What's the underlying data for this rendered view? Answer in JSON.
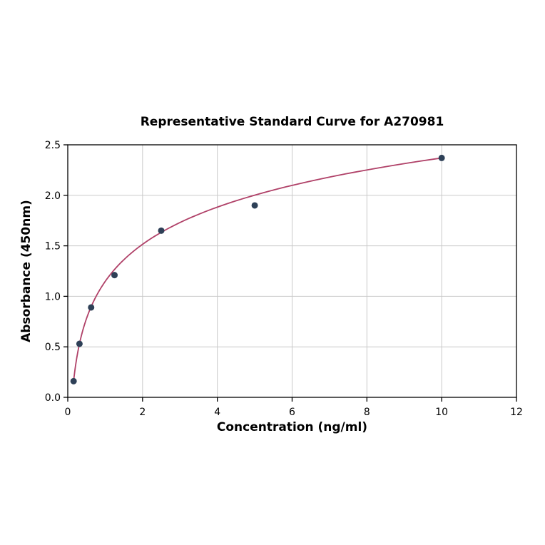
{
  "chart_data": {
    "type": "scatter",
    "title": "Representative Standard Curve for A270981",
    "xlabel": "Concentration (ng/ml)",
    "ylabel": "Absorbance (450nm)",
    "xlim": [
      0,
      12
    ],
    "ylim": [
      0,
      2.5
    ],
    "grid": true,
    "legend": "none",
    "x_ticks": [
      0,
      2,
      4,
      6,
      8,
      10,
      12
    ],
    "x_tick_labels": [
      "0",
      "2",
      "4",
      "6",
      "8",
      "10",
      "12"
    ],
    "y_ticks": [
      0.0,
      0.5,
      1.0,
      1.5,
      2.0,
      2.5
    ],
    "y_tick_labels": [
      "0.0",
      "0.5",
      "1.0",
      "1.5",
      "2.0",
      "2.5"
    ],
    "points": [
      {
        "x": 0.156,
        "y": 0.16
      },
      {
        "x": 0.313,
        "y": 0.53
      },
      {
        "x": 0.625,
        "y": 0.89
      },
      {
        "x": 1.25,
        "y": 1.21
      },
      {
        "x": 2.5,
        "y": 1.65
      },
      {
        "x": 5,
        "y": 1.9
      },
      {
        "x": 10,
        "y": 2.37
      }
    ],
    "fit_curve": {
      "type": "log",
      "a": 1.147,
      "b": 0.531,
      "x_start": 0.156,
      "x_end": 10
    },
    "colors": {
      "points": "#2e4057",
      "curve": "#b04168",
      "grid": "#c9c9c9",
      "axis": "#000000",
      "background": "#ffffff"
    }
  }
}
